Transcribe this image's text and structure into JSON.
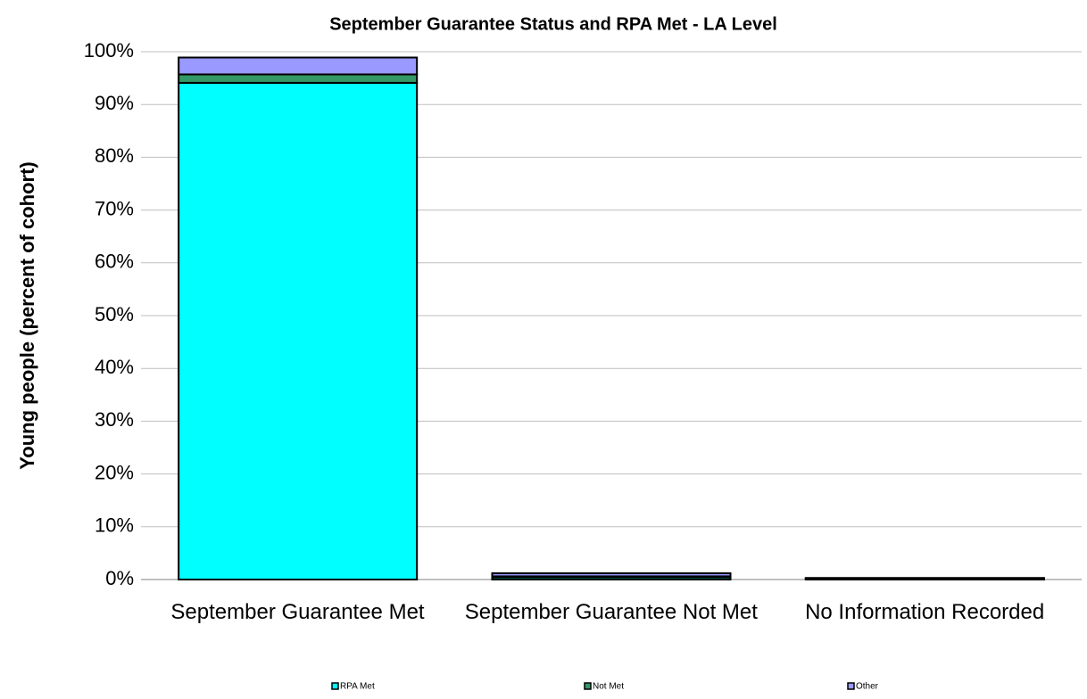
{
  "chart_data": {
    "type": "stacked_bar",
    "title": "September Guarantee Status and RPA Met - LA Level",
    "y_axis_label": "Young people (percent of cohort)",
    "categories": [
      "September Guarantee Met",
      "September Guarantee Not Met",
      "No Information Recorded"
    ],
    "series": [
      {
        "name": "RPA Met",
        "color": "#00ffff",
        "values": [
          94.1,
          0.4,
          0.1
        ]
      },
      {
        "name": "Not Met",
        "color": "#339966",
        "values": [
          1.6,
          0.2,
          0.1
        ]
      },
      {
        "name": "Other",
        "color": "#9999ff",
        "values": [
          3.2,
          0.6,
          0.1
        ]
      }
    ],
    "ylim": [
      0,
      100
    ],
    "yticks": [
      {
        "value": 0,
        "label": "0%"
      },
      {
        "value": 10,
        "label": "10%"
      },
      {
        "value": 20,
        "label": "20%"
      },
      {
        "value": 30,
        "label": "30%"
      },
      {
        "value": 40,
        "label": "40%"
      },
      {
        "value": 50,
        "label": "50%"
      },
      {
        "value": 60,
        "label": "60%"
      },
      {
        "value": 70,
        "label": "70%"
      },
      {
        "value": 80,
        "label": "80%"
      },
      {
        "value": 90,
        "label": "90%"
      },
      {
        "value": 100,
        "label": "100%"
      }
    ],
    "grid": true,
    "legend": "bottom"
  }
}
